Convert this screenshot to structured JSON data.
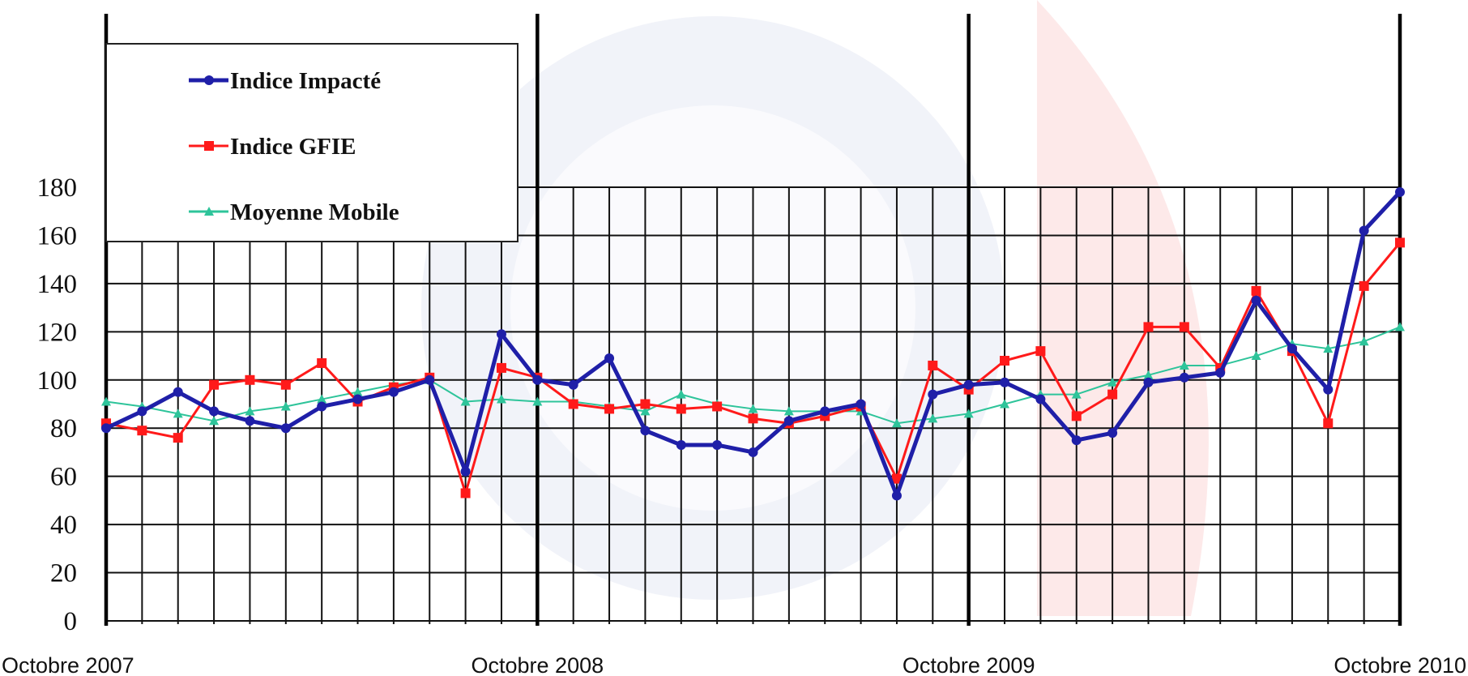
{
  "chart_data": {
    "type": "line",
    "categories": [
      "Octobre 2007",
      null,
      null,
      null,
      null,
      null,
      null,
      null,
      null,
      null,
      null,
      null,
      "Octobre 2008",
      null,
      null,
      null,
      null,
      null,
      null,
      null,
      null,
      null,
      null,
      null,
      "Octobre 2009",
      null,
      null,
      null,
      null,
      null,
      null,
      null,
      null,
      null,
      null,
      null,
      "Octobre 2010"
    ],
    "series": [
      {
        "name": "Indice Impacté",
        "color": "#1f1fa8",
        "marker": "circle",
        "values": [
          80,
          87,
          95,
          87,
          83,
          80,
          89,
          92,
          95,
          100,
          62,
          119,
          100,
          98,
          109,
          79,
          73,
          73,
          70,
          83,
          87,
          90,
          52,
          94,
          98,
          99,
          92,
          75,
          78,
          99,
          101,
          103,
          133,
          113,
          96,
          162,
          178
        ]
      },
      {
        "name": "Indice GFIE",
        "color": "#ff1a1a",
        "marker": "square",
        "values": [
          82,
          79,
          76,
          98,
          100,
          98,
          107,
          91,
          97,
          101,
          53,
          105,
          101,
          90,
          88,
          90,
          88,
          89,
          84,
          82,
          85,
          89,
          59,
          106,
          96,
          108,
          112,
          85,
          94,
          122,
          122,
          105,
          137,
          112,
          82,
          139,
          157
        ]
      },
      {
        "name": "Moyenne Mobile",
        "color": "#2ec49a",
        "marker": "triangle",
        "values": [
          91,
          89,
          86,
          83,
          87,
          89,
          92,
          95,
          98,
          100,
          91,
          92,
          91,
          91,
          89,
          87,
          94,
          90,
          88,
          87,
          87,
          87,
          82,
          84,
          86,
          90,
          94,
          94,
          99,
          102,
          106,
          106,
          110,
          115,
          113,
          116,
          122
        ]
      }
    ],
    "ylim": [
      0,
      180
    ],
    "yticks": [
      0,
      20,
      40,
      60,
      80,
      100,
      120,
      140,
      160,
      180
    ],
    "grid": true,
    "legend": "top-left"
  }
}
